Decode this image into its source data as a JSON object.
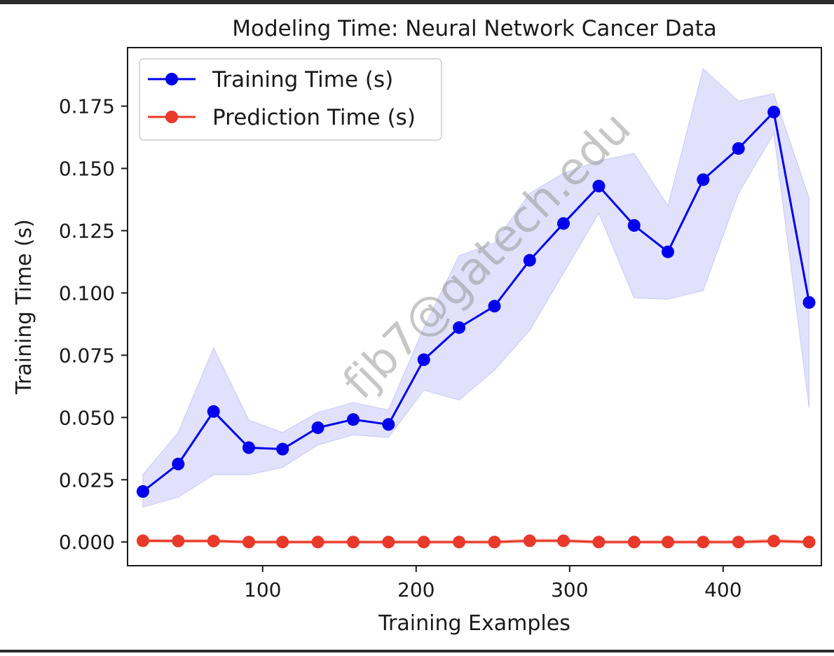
{
  "chart_data": {
    "type": "line",
    "title": "Modeling Time: Neural Network Cancer Data",
    "xlabel": "Training Examples",
    "ylabel": "Training Time (s)",
    "xlim": [
      12,
      464
    ],
    "ylim": [
      -0.0095,
      0.1985
    ],
    "xticks": [
      100,
      200,
      300,
      400
    ],
    "xtick_labels": [
      "100",
      "200",
      "300",
      "400"
    ],
    "yticks": [
      0,
      0.025,
      0.05,
      0.075,
      0.1,
      0.125,
      0.15,
      0.175
    ],
    "ytick_labels": [
      "0.000",
      "0.025",
      "0.050",
      "0.075",
      "0.100",
      "0.125",
      "0.150",
      "0.175"
    ],
    "legend_position": "upper-left",
    "grid": false,
    "watermark": "fjb7@gatech.edu",
    "x": [
      22,
      45,
      68,
      91,
      113,
      136,
      159,
      182,
      205,
      228,
      251,
      274,
      296,
      319,
      342,
      364,
      387,
      410,
      433,
      456
    ],
    "series": [
      {
        "name": "Training Time (s)",
        "color": "#0000ee",
        "band_color": "#c8c8f8",
        "values": [
          0.0203,
          0.0313,
          0.0524,
          0.0379,
          0.0373,
          0.0459,
          0.0492,
          0.0472,
          0.0732,
          0.0861,
          0.0947,
          0.1131,
          0.1279,
          0.1429,
          0.1271,
          0.1165,
          0.1455,
          0.158,
          0.1726,
          0.0962
        ],
        "band_upper": [
          0.027,
          0.044,
          0.078,
          0.049,
          0.044,
          0.052,
          0.056,
          0.053,
          0.086,
          0.115,
          0.12,
          0.14,
          0.148,
          0.153,
          0.156,
          0.135,
          0.19,
          0.177,
          0.18,
          0.138
        ],
        "band_lower": [
          0.014,
          0.018,
          0.027,
          0.027,
          0.03,
          0.039,
          0.043,
          0.042,
          0.061,
          0.057,
          0.069,
          0.085,
          0.108,
          0.132,
          0.098,
          0.0975,
          0.101,
          0.14,
          0.164,
          0.054
        ]
      },
      {
        "name": "Prediction Time (s)",
        "color": "#e8392a",
        "band_color": "#f5c6c0",
        "values": [
          0.0005,
          0.0004,
          0.0004,
          0.0,
          0.0,
          0.0,
          0.0,
          0.0,
          0.0,
          0.0,
          0.0,
          0.0005,
          0.0005,
          0.0,
          0.0,
          0.0,
          0.0,
          0.0,
          0.0004,
          0.0
        ],
        "band_upper": [
          0.0012,
          0.001,
          0.001,
          0.0006,
          0.0006,
          0.0006,
          0.0006,
          0.0006,
          0.0006,
          0.0006,
          0.0006,
          0.0012,
          0.0012,
          0.0006,
          0.0006,
          0.0006,
          0.0006,
          0.0006,
          0.0012,
          0.0006
        ],
        "band_lower": [
          -0.0002,
          -0.0002,
          -0.0002,
          -0.0006,
          -0.0006,
          -0.0006,
          -0.0006,
          -0.0006,
          -0.0006,
          -0.0006,
          -0.0006,
          -0.0002,
          -0.0002,
          -0.0006,
          -0.0006,
          -0.0006,
          -0.0006,
          -0.0006,
          -0.0004,
          -0.0006
        ]
      }
    ]
  }
}
